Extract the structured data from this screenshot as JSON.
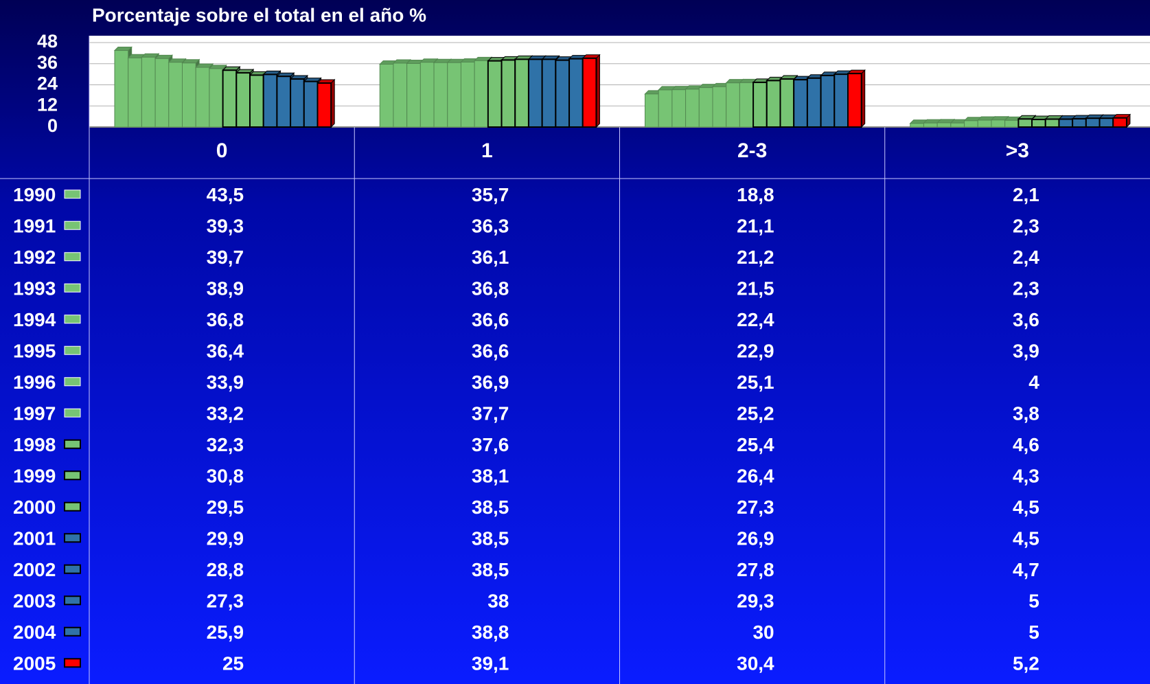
{
  "chart_data": {
    "type": "bar",
    "title": "Porcentaje sobre el total en el año %",
    "categories": [
      "0",
      "1",
      "2-3",
      ">3"
    ],
    "ylim": [
      0,
      48
    ],
    "yticks": [
      0,
      12,
      24,
      36,
      48
    ],
    "grid": true,
    "series": [
      {
        "name": "1990",
        "color": "#77c474",
        "outlined": false,
        "label_color": "#ffffff",
        "values": [
          43.5,
          35.7,
          18.8,
          2.1
        ],
        "value_labels": [
          "43,5",
          "35,7",
          "18,8",
          "2,1"
        ]
      },
      {
        "name": "1991",
        "color": "#77c474",
        "outlined": false,
        "label_color": "#ffffff",
        "values": [
          39.3,
          36.3,
          21.1,
          2.3
        ],
        "value_labels": [
          "39,3",
          "36,3",
          "21,1",
          "2,3"
        ]
      },
      {
        "name": "1992",
        "color": "#77c474",
        "outlined": false,
        "label_color": "#ffffff",
        "values": [
          39.7,
          36.1,
          21.2,
          2.4
        ],
        "value_labels": [
          "39,7",
          "36,1",
          "21,2",
          "2,4"
        ]
      },
      {
        "name": "1993",
        "color": "#77c474",
        "outlined": false,
        "label_color": "#ffffff",
        "values": [
          38.9,
          36.8,
          21.5,
          2.3
        ],
        "value_labels": [
          "38,9",
          "36,8",
          "21,5",
          "2,3"
        ]
      },
      {
        "name": "1994",
        "color": "#77c474",
        "outlined": false,
        "label_color": "#ffffff",
        "values": [
          36.8,
          36.6,
          22.4,
          3.6
        ],
        "value_labels": [
          "36,8",
          "36,6",
          "22,4",
          "3,6"
        ]
      },
      {
        "name": "1995",
        "color": "#77c474",
        "outlined": false,
        "label_color": "#ffffff",
        "values": [
          36.4,
          36.6,
          22.9,
          3.9
        ],
        "value_labels": [
          "36,4",
          "36,6",
          "22,9",
          "3,9"
        ]
      },
      {
        "name": "1996",
        "color": "#77c474",
        "outlined": false,
        "label_color": "#ffffff",
        "values": [
          33.9,
          36.9,
          25.1,
          4
        ],
        "value_labels": [
          "33,9",
          "36,9",
          "25,1",
          "4"
        ]
      },
      {
        "name": "1997",
        "color": "#77c474",
        "outlined": false,
        "label_color": "#ffffff",
        "values": [
          33.2,
          37.7,
          25.2,
          3.8
        ],
        "value_labels": [
          "33,2",
          "37,7",
          "25,2",
          "3,8"
        ]
      },
      {
        "name": "1998",
        "color": "#77c474",
        "outlined": true,
        "label_color": "#ffffff",
        "values": [
          32.3,
          37.6,
          25.4,
          4.6
        ],
        "value_labels": [
          "32,3",
          "37,6",
          "25,4",
          "4,6"
        ]
      },
      {
        "name": "1999",
        "color": "#77c474",
        "outlined": true,
        "label_color": "#ffffff",
        "values": [
          30.8,
          38.1,
          26.4,
          4.3
        ],
        "value_labels": [
          "30,8",
          "38,1",
          "26,4",
          "4,3"
        ]
      },
      {
        "name": "2000",
        "color": "#77c474",
        "outlined": true,
        "label_color": "#ffffff",
        "values": [
          29.5,
          38.5,
          27.3,
          4.5
        ],
        "value_labels": [
          "29,5",
          "38,5",
          "27,3",
          "4,5"
        ]
      },
      {
        "name": "2001",
        "color": "#2f72a8",
        "outlined": true,
        "label_color": "#ffffff",
        "values": [
          29.9,
          38.5,
          26.9,
          4.5
        ],
        "value_labels": [
          "29,9",
          "38,5",
          "26,9",
          "4,5"
        ]
      },
      {
        "name": "2002",
        "color": "#2f72a8",
        "outlined": true,
        "label_color": "#ffffff",
        "values": [
          28.8,
          38.5,
          27.8,
          4.7
        ],
        "value_labels": [
          "28,8",
          "38,5",
          "27,8",
          "4,7"
        ]
      },
      {
        "name": "2003",
        "color": "#2f72a8",
        "outlined": true,
        "label_color": "#ffffff",
        "values": [
          27.3,
          38,
          29.3,
          5
        ],
        "value_labels": [
          "27,3",
          "38",
          "29,3",
          "5"
        ]
      },
      {
        "name": "2004",
        "color": "#2f72a8",
        "outlined": true,
        "label_color": "#ffffff",
        "values": [
          25.9,
          38.8,
          30,
          5
        ],
        "value_labels": [
          "25,9",
          "38,8",
          "30",
          "5"
        ]
      },
      {
        "name": "2005",
        "color": "#ff0000",
        "outlined": true,
        "label_color": "#ff9900",
        "values": [
          25,
          39.1,
          30.4,
          5.2
        ],
        "value_labels": [
          "25",
          "39,1",
          "30,4",
          "5,2"
        ]
      }
    ]
  }
}
